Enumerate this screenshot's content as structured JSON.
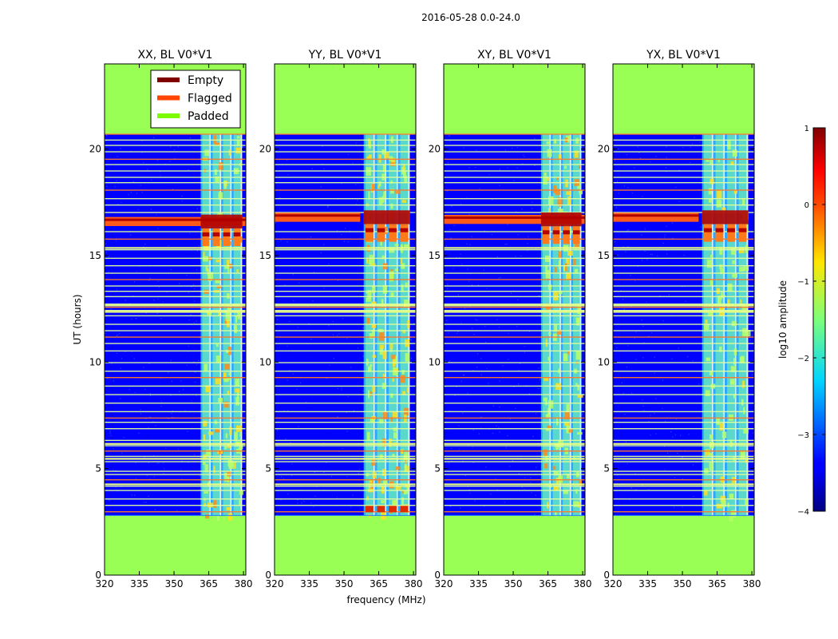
{
  "chart_data": {
    "type": "heatmap",
    "suptitle": "2016-05-28 0.0-24.0",
    "xlabel": "frequency (MHz)",
    "ylabel": "UT (hours)",
    "xlim": [
      320,
      381
    ],
    "ylim": [
      0,
      24
    ],
    "xticks": [
      320,
      335,
      350,
      365,
      380
    ],
    "yticks": [
      0,
      5,
      10,
      15,
      20
    ],
    "data_rows_ut": [
      2.8,
      20.7
    ],
    "colorbar": {
      "label": "log10 amplitude",
      "range": [
        -4,
        1
      ],
      "ticks": [
        1,
        0,
        -1,
        -2,
        -3,
        -4
      ],
      "tick_labels": [
        "1",
        "0",
        "−1",
        "−2",
        "−3",
        "−4"
      ]
    },
    "legend": {
      "placement": "top-right of first panel",
      "entries": [
        {
          "label": "Empty",
          "color": "#800000"
        },
        {
          "label": "Flagged",
          "color": "#ff4500"
        },
        {
          "label": "Padded",
          "color": "#7cfc00"
        }
      ]
    },
    "colors": {
      "background": "#0000ff",
      "padded": "#99ff55",
      "rfi_low": "#2ea8ff",
      "rfi_mid": "#b8ff6a",
      "rfi_high": "#ffe020",
      "flag_line": "#ff7a2a",
      "empty": "#b00000"
    },
    "panels": [
      {
        "title": "XX, BL V0*V1",
        "band_mhz": [
          361.5,
          379.5
        ],
        "stripe_ut": [
          16.7,
          16.5
        ],
        "stripe_extent_mhz": [
          320,
          381
        ],
        "strong_rfi": "moderate",
        "speckle": 0.55
      },
      {
        "title": "YY, BL V0*V1",
        "band_mhz": [
          358.5,
          378.5
        ],
        "stripe_ut": [
          16.9,
          16.7
        ],
        "stripe_extent_mhz": [
          320,
          357
        ],
        "strong_rfi": "heavy",
        "speckle": 0.35
      },
      {
        "title": "XY, BL V0*V1",
        "band_mhz": [
          362.0,
          379.5
        ],
        "stripe_ut": [
          16.8,
          16.6
        ],
        "stripe_extent_mhz": [
          320,
          381
        ],
        "strong_rfi": "moderate",
        "speckle": 0.5
      },
      {
        "title": "YX, BL V0*V1",
        "band_mhz": [
          358.5,
          378.5
        ],
        "stripe_ut": [
          16.9,
          16.7
        ],
        "stripe_extent_mhz": [
          320,
          357
        ],
        "strong_rfi": "light",
        "speckle": 0.35
      }
    ],
    "flag_rows_ut": [
      3.0,
      3.3,
      3.6,
      4.0,
      4.2,
      4.5,
      4.75,
      4.9,
      5.35,
      5.6,
      5.85,
      6.1,
      6.35,
      6.9,
      7.2,
      7.4,
      7.7,
      8.1,
      8.5,
      8.9,
      9.3,
      9.6,
      10.0,
      10.55,
      10.9,
      11.2,
      11.5,
      11.8,
      12.2,
      12.45,
      12.6,
      12.75,
      13.1,
      13.35,
      13.6,
      13.9,
      14.2,
      14.55,
      14.9,
      15.3,
      15.8,
      16.15,
      17.05,
      17.4,
      17.7,
      18.1,
      18.45,
      18.7,
      19.0,
      19.3,
      19.55,
      19.9,
      20.2,
      20.45
    ]
  }
}
